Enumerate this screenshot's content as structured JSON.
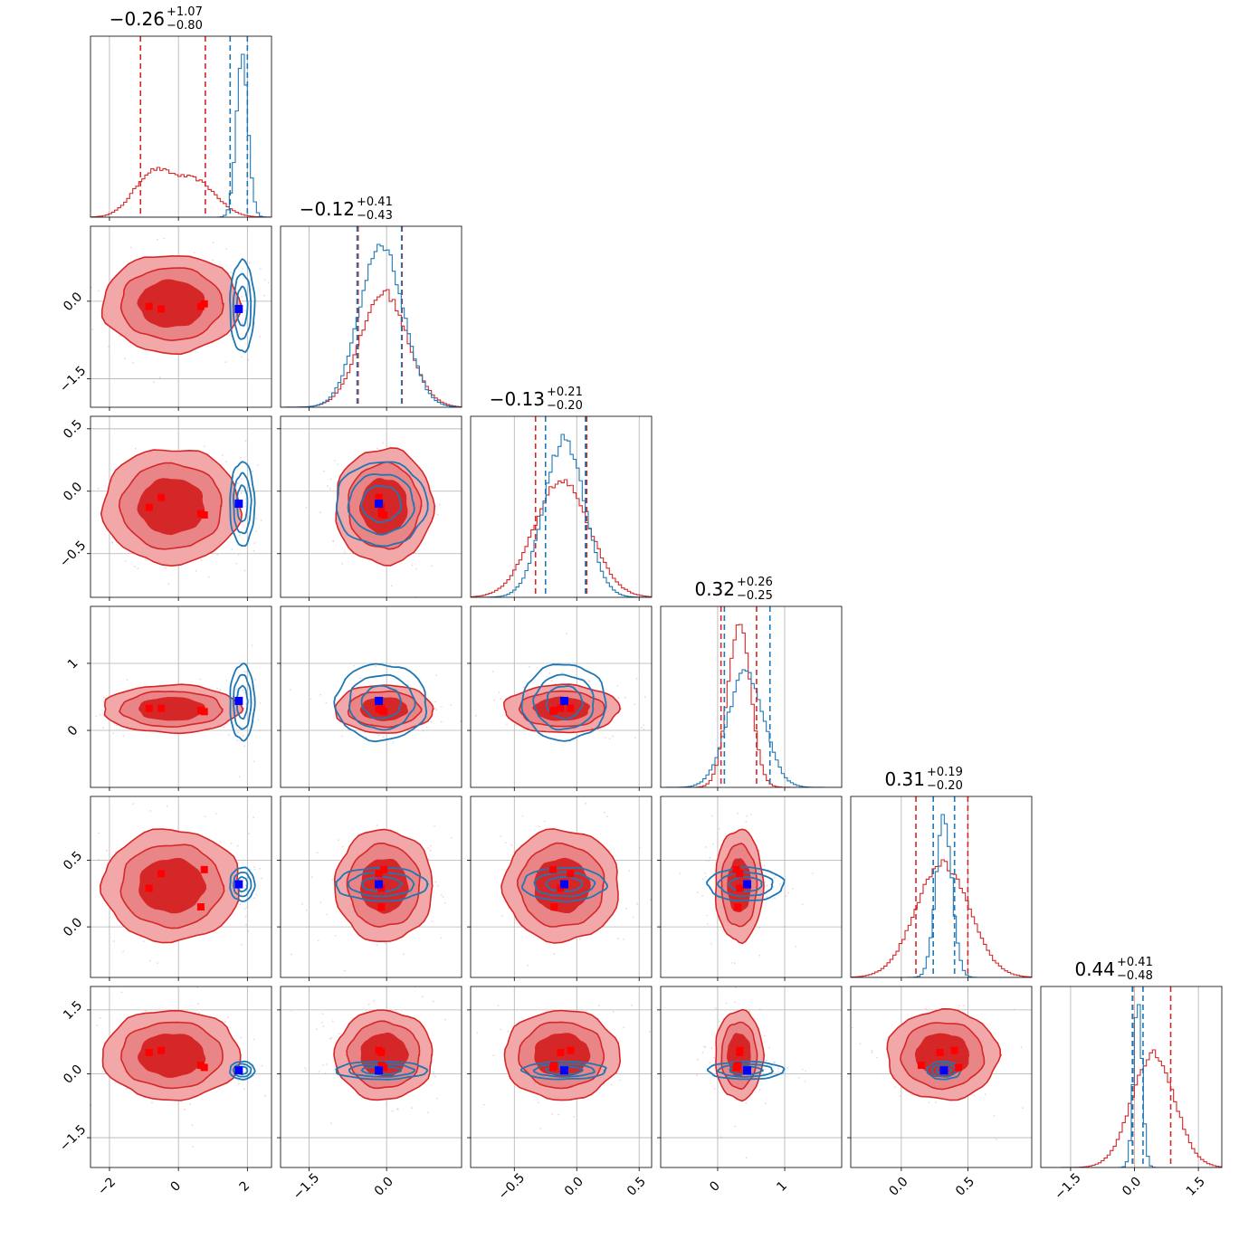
{
  "chart_data": {
    "type": "corner",
    "colors": {
      "red": "#d62728",
      "blue": "#1f77b4",
      "red_fill_light": "#f2a7a8",
      "red_fill_dark": "#d62728",
      "truth_red": "#ff0000",
      "truth_blue": "#0000ff",
      "grid": "#b0b0b0"
    },
    "grid": true,
    "params": [
      {
        "title_value": "−0.26",
        "title_plus": "+1.07",
        "title_minus": "−0.80",
        "range": [
          -2.55,
          2.7
        ],
        "ticks": [
          -2,
          0,
          2
        ],
        "tick_labels": [
          "−2",
          "0",
          "2"
        ],
        "red": {
          "mu": -0.2,
          "sd": 0.95,
          "quantiles": [
            -1.1,
            0.78
          ],
          "bimodal": [
            -0.75,
            0.5
          ]
        },
        "blue": {
          "mu": 1.85,
          "sd": 0.17,
          "quantiles": [
            1.5,
            2.0
          ]
        },
        "truth_red": [
          -0.85,
          -0.5,
          0.65,
          0.75
        ],
        "truth_blue": 1.75
      },
      {
        "title_value": "−0.12",
        "title_plus": "+0.41",
        "title_minus": "−0.43",
        "range": [
          -2.05,
          1.45
        ],
        "ticks": [
          -1.5,
          0.0
        ],
        "tick_labels": [
          "−1.5",
          "0.0"
        ],
        "red": {
          "mu": -0.05,
          "sd": 0.45,
          "quantiles": [
            -0.55,
            0.3
          ]
        },
        "blue": {
          "mu": -0.1,
          "sd": 0.42,
          "quantiles": [
            -0.57,
            0.29
          ]
        },
        "truth_red": [
          -0.1,
          -0.15,
          -0.1,
          -0.05
        ],
        "truth_blue": -0.15
      },
      {
        "title_value": "−0.13",
        "title_plus": "+0.21",
        "title_minus": "−0.20",
        "range": [
          -0.85,
          0.6
        ],
        "ticks": [
          -0.5,
          0.0,
          0.5
        ],
        "tick_labels": [
          "−0.5",
          "0.0",
          "0.5"
        ],
        "red": {
          "mu": -0.12,
          "sd": 0.22,
          "quantiles": [
            -0.33,
            0.08
          ]
        },
        "blue": {
          "mu": -0.1,
          "sd": 0.16,
          "quantiles": [
            -0.25,
            0.07
          ]
        },
        "truth_red": [
          -0.13,
          -0.05,
          -0.18,
          -0.19
        ],
        "truth_blue": -0.1
      },
      {
        "title_value": "0.32",
        "title_plus": "+0.26",
        "title_minus": "−0.25",
        "range": [
          -0.85,
          1.85
        ],
        "ticks": [
          0,
          1
        ],
        "tick_labels": [
          "0",
          "1"
        ],
        "red": {
          "mu": 0.32,
          "sd": 0.17,
          "quantiles": [
            0.05,
            0.58
          ]
        },
        "blue": {
          "mu": 0.42,
          "sd": 0.27,
          "quantiles": [
            0.1,
            0.78
          ]
        },
        "truth_red": [
          0.33,
          0.33,
          0.3,
          0.28
        ],
        "truth_blue": 0.44
      },
      {
        "title_value": "0.31",
        "title_plus": "+0.19",
        "title_minus": "−0.20",
        "range": [
          -0.38,
          0.98
        ],
        "ticks": [
          0.0,
          0.5
        ],
        "tick_labels": [
          "0.0",
          "0.5"
        ],
        "red": {
          "mu": 0.31,
          "sd": 0.2,
          "quantiles": [
            0.11,
            0.5
          ]
        },
        "blue": {
          "mu": 0.32,
          "sd": 0.06,
          "quantiles": [
            0.24,
            0.4
          ]
        },
        "truth_red": [
          0.29,
          0.4,
          0.15,
          0.43
        ],
        "truth_blue": 0.32
      },
      {
        "title_value": "0.44",
        "title_plus": "+0.41",
        "title_minus": "−0.48",
        "range": [
          -2.2,
          2.05
        ],
        "ticks": [
          -1.5,
          0.0,
          1.5
        ],
        "tick_labels": [
          "−1.5",
          "0.0",
          "1.5"
        ],
        "red": {
          "mu": 0.44,
          "sd": 0.5,
          "quantiles": [
            -0.04,
            0.85
          ]
        },
        "blue": {
          "mu": 0.08,
          "sd": 0.1,
          "quantiles": [
            -0.05,
            0.2
          ]
        },
        "truth_red": [
          0.5,
          0.55,
          0.2,
          0.15
        ],
        "truth_blue": 0.08
      }
    ]
  }
}
